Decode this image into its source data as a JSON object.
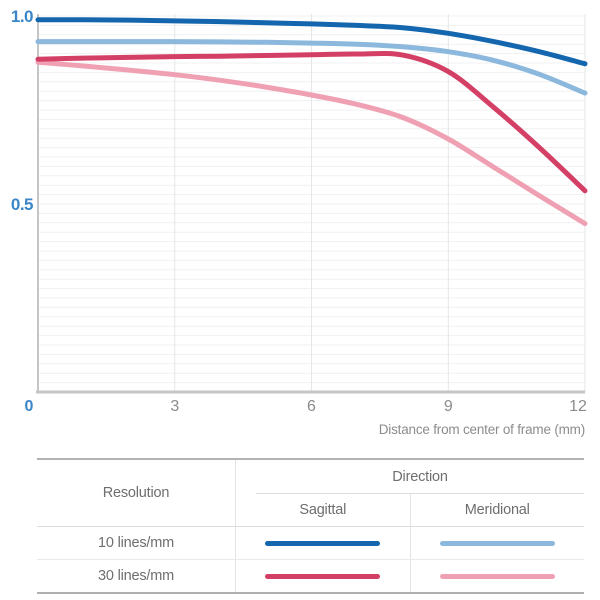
{
  "chart_data": {
    "type": "line",
    "title": "",
    "xlabel": "Distance from center of frame (mm)",
    "ylabel": "",
    "xlim": [
      0,
      12
    ],
    "ylim": [
      0,
      1.0
    ],
    "grid": true,
    "minor_grid_step_y": 0.025,
    "legend_position": "table-below",
    "x": [
      0,
      1,
      2,
      3,
      4,
      5,
      6,
      7,
      8,
      9,
      10,
      11,
      12
    ],
    "xticks": [
      {
        "label": "0",
        "value": 0
      },
      {
        "label": "3",
        "value": 3
      },
      {
        "label": "6",
        "value": 6
      },
      {
        "label": "9",
        "value": 9
      },
      {
        "label": "12",
        "value": 12
      }
    ],
    "yticks": [
      {
        "label": "1.0",
        "value": 1.0
      },
      {
        "label": "0.5",
        "value": 0.5
      }
    ],
    "series": [
      {
        "name": "30 lines/mm Meridional",
        "color": "#efa1b3",
        "values": [
          0.877,
          0.867,
          0.856,
          0.844,
          0.829,
          0.811,
          0.79,
          0.765,
          0.73,
          0.673,
          0.598,
          0.522,
          0.448
        ]
      },
      {
        "name": "30 lines/mm Sagittal",
        "color": "#d43f66",
        "values": [
          0.885,
          0.888,
          0.89,
          0.892,
          0.893,
          0.895,
          0.897,
          0.899,
          0.896,
          0.852,
          0.757,
          0.65,
          0.535
        ]
      },
      {
        "name": "10 lines/mm Meridional",
        "color": "#8cb8dd",
        "values": [
          0.932,
          0.932,
          0.932,
          0.932,
          0.931,
          0.93,
          0.928,
          0.925,
          0.918,
          0.905,
          0.882,
          0.845,
          0.795
        ]
      },
      {
        "name": "10 lines/mm Sagittal",
        "color": "#1467ae",
        "values": [
          0.99,
          0.99,
          0.989,
          0.987,
          0.985,
          0.982,
          0.979,
          0.975,
          0.969,
          0.954,
          0.932,
          0.905,
          0.873
        ]
      }
    ]
  },
  "colors": {
    "accent_blue": "#3a86c8",
    "tick_gray": "#8b8b8b",
    "axis_gray": "#c5c5c5",
    "grid_minor": "#f1f1f1",
    "grid_major": "#e6e6e6",
    "table_border": "#b3b3b3",
    "table_text": "#6e6e6e"
  },
  "table": {
    "resolution_header": "Resolution",
    "direction_header": "Direction",
    "columns": [
      "Sagittal",
      "Meridional"
    ],
    "rows": [
      {
        "label": "10 lines/mm",
        "sagittal_color": "#1467ae",
        "meridional_color": "#8cb8dd"
      },
      {
        "label": "30 lines/mm",
        "sagittal_color": "#d43f66",
        "meridional_color": "#efa1b3"
      }
    ]
  }
}
